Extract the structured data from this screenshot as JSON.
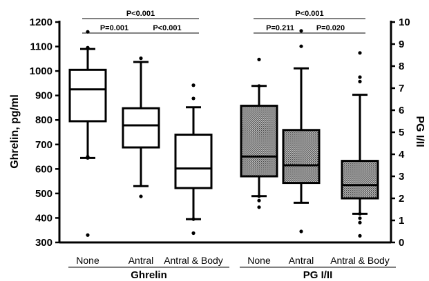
{
  "chart_data": {
    "type": "box",
    "y_left": {
      "label": "Ghrelin, pg/ml",
      "min": 300,
      "max": 1200,
      "step": 100,
      "ticks": [
        "300",
        "400",
        "500",
        "600",
        "700",
        "800",
        "900",
        "1000",
        "1100",
        "1200"
      ]
    },
    "y_right": {
      "label": "PG I/II",
      "min": 0,
      "max": 10,
      "step": 1,
      "ticks": [
        "0",
        "1",
        "2",
        "3",
        "4",
        "5",
        "6",
        "7",
        "8",
        "9",
        "10"
      ]
    },
    "groups": [
      {
        "label": "Ghrelin",
        "categories": [
          "None",
          "Antral",
          "Antral & Body"
        ]
      },
      {
        "label": "PG I/II",
        "categories": [
          "None",
          "Antral",
          "Antral & Body"
        ]
      }
    ],
    "series": [
      {
        "group": "Ghrelin",
        "axis": "left",
        "fill": "white",
        "boxes": [
          {
            "category": "None",
            "whisker_low": 645,
            "q1": 795,
            "median": 925,
            "q3": 1005,
            "whisker_high": 1090,
            "outliers": [
              1160,
              1095,
              1095,
              650,
              645,
              330
            ]
          },
          {
            "category": "Antral",
            "whisker_low": 530,
            "q1": 688,
            "median": 778,
            "q3": 848,
            "whisker_high": 1037,
            "outliers": [
              1052,
              488
            ]
          },
          {
            "category": "Antral & Body",
            "whisker_low": 395,
            "q1": 522,
            "median": 602,
            "q3": 740,
            "whisker_high": 852,
            "outliers": [
              942,
              888,
              395,
              338
            ]
          }
        ]
      },
      {
        "group": "PG I/II",
        "axis": "right",
        "fill": "hatched",
        "boxes": [
          {
            "category": "None",
            "whisker_low": 2.1,
            "q1": 3.0,
            "median": 3.9,
            "q3": 6.2,
            "whisker_high": 7.1,
            "outliers": [
              8.3,
              7.1,
              2.1,
              1.9,
              1.6
            ]
          },
          {
            "category": "Antral",
            "whisker_low": 1.8,
            "q1": 2.7,
            "median": 3.5,
            "q3": 5.1,
            "whisker_high": 7.9,
            "outliers": [
              9.6,
              8.9,
              0.5
            ]
          },
          {
            "category": "Antral & Body",
            "whisker_low": 1.3,
            "q1": 2.0,
            "median": 2.6,
            "q3": 3.7,
            "whisker_high": 6.7,
            "outliers": [
              8.6,
              7.5,
              7.3,
              1.3,
              1.1,
              0.9,
              0.3
            ]
          }
        ]
      }
    ],
    "comparisons": [
      {
        "group": "Ghrelin",
        "from": "None",
        "to": "Antral",
        "label": "P=0.001"
      },
      {
        "group": "Ghrelin",
        "from": "Antral",
        "to": "Antral & Body",
        "label": "P<0.001"
      },
      {
        "group": "Ghrelin",
        "from": "None",
        "to": "Antral & Body",
        "label": "P<0.001"
      },
      {
        "group": "PG I/II",
        "from": "None",
        "to": "Antral",
        "label": "P=0.211"
      },
      {
        "group": "PG I/II",
        "from": "Antral",
        "to": "Antral & Body",
        "label": "P=0.020"
      },
      {
        "group": "PG I/II",
        "from": "None",
        "to": "Antral & Body",
        "label": "P<0.001"
      }
    ]
  }
}
